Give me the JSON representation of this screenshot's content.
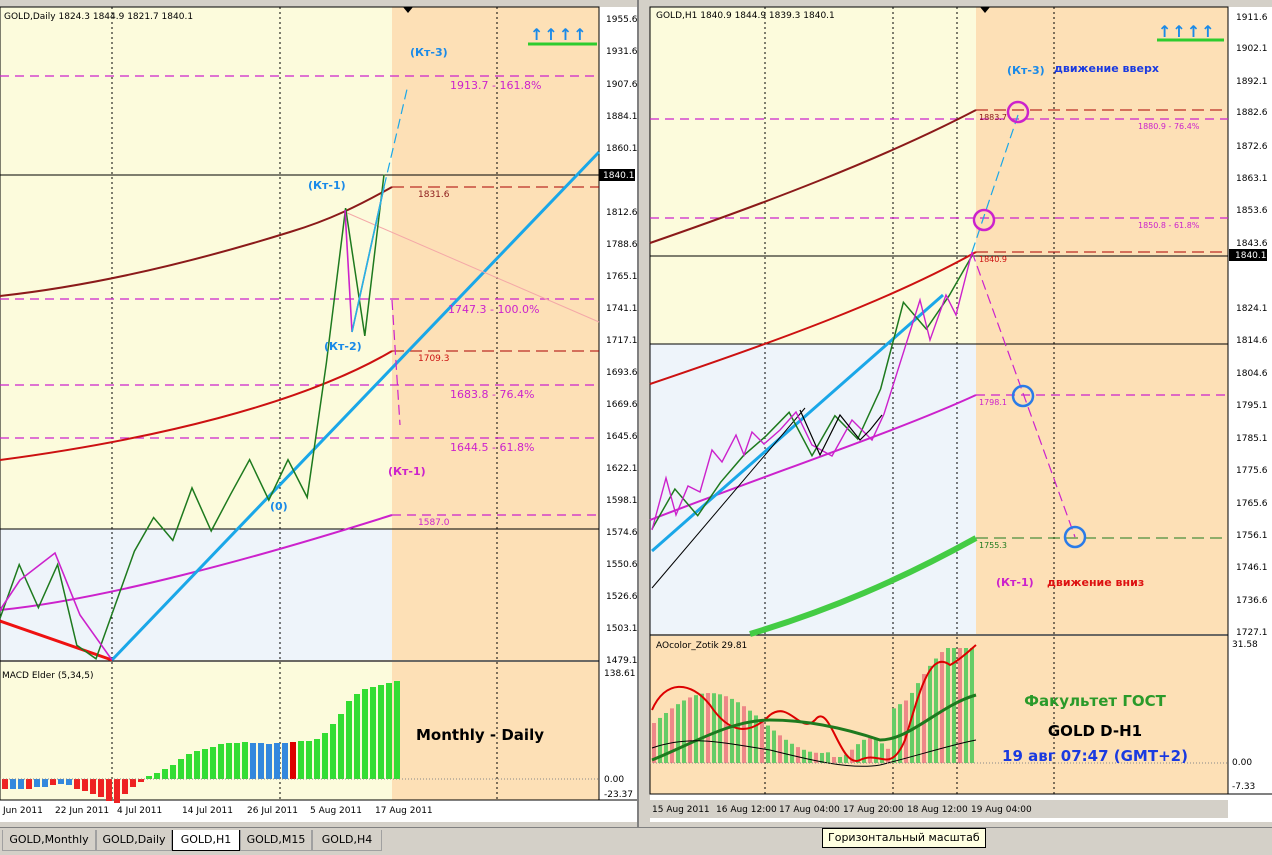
{
  "left": {
    "header": "GOLD,Daily  1824.3 1844.9 1821.7 1840.1",
    "price_ticks": [
      "1955.6",
      "1931.6",
      "1907.6",
      "1884.1",
      "1860.1",
      "1812.6",
      "1788.6",
      "1765.1",
      "1741.1",
      "1717.1",
      "1693.6",
      "1669.6",
      "1645.6",
      "1622.1",
      "1598.1",
      "1574.6",
      "1550.6",
      "1526.6",
      "1503.1",
      "1479.1"
    ],
    "current_price": "1840.1",
    "date_ticks": [
      "Jun 2011",
      "22 Jun 2011",
      "4 Jul 2011",
      "14 Jul 2011",
      "26 Jul 2011",
      "5 Aug 2011",
      "17 Aug 2011"
    ],
    "labels": {
      "kt3": "(Кт-3)",
      "kt1": "(Кт-1)",
      "kt2": "(Кт-2)",
      "zero": "(0)",
      "kt1_down": "(Кт-1)",
      "fib1": "1913.7 - 161.8%",
      "fib2": "1747.3 - 100.0%",
      "fib3": "1683.8 - 76.4%",
      "fib4": "1644.5 - 61.8%",
      "lvl1": "1831.6",
      "lvl2": "1709.3",
      "lvl3": "1587.0"
    },
    "osc_header": "MACD Elder (5,34,5)",
    "osc_ticks": [
      "138.61",
      "0.00",
      "-23.37"
    ],
    "caption": "Monthly - Daily",
    "arrows": "↑↑↑↑",
    "chart_data": {
      "type": "line",
      "title": "GOLD,Daily",
      "ylim": [
        1479.1,
        1955.6
      ],
      "price_path": [
        {
          "x": "Jun 2011",
          "y": 1510
        },
        {
          "x": "",
          "y": 1550
        },
        {
          "x": "",
          "y": 1518
        },
        {
          "x": "",
          "y": 1550
        },
        {
          "x": "",
          "y": 1490
        },
        {
          "x": "4 Jul 2011",
          "y": 1480
        },
        {
          "x": "",
          "y": 1520
        },
        {
          "x": "",
          "y": 1560
        },
        {
          "x": "14 Jul 2011",
          "y": 1585
        },
        {
          "x": "",
          "y": 1568
        },
        {
          "x": "",
          "y": 1607
        },
        {
          "x": "",
          "y": 1575
        },
        {
          "x": "",
          "y": 1602
        },
        {
          "x": "",
          "y": 1628
        },
        {
          "x": "26 Jul 2011",
          "y": 1598
        },
        {
          "x": "",
          "y": 1628
        },
        {
          "x": "",
          "y": 1600
        },
        {
          "x": "",
          "y": 1700
        },
        {
          "x": "",
          "y": 1815
        },
        {
          "x": "",
          "y": 1720
        },
        {
          "x": "17 Aug 2011",
          "y": 1840
        }
      ]
    }
  },
  "right": {
    "header": "GOLD,H1  1840.9 1844.9 1839.3 1840.1",
    "price_ticks": [
      "1911.6",
      "1902.1",
      "1892.1",
      "1882.6",
      "1872.6",
      "1863.1",
      "1853.6",
      "1843.6",
      "1824.1",
      "1814.6",
      "1804.6",
      "1795.1",
      "1785.1",
      "1775.6",
      "1765.6",
      "1756.1",
      "1746.1",
      "1736.6",
      "1727.1"
    ],
    "current_price": "1840.1",
    "date_ticks": [
      "15 Aug 2011",
      "16 Aug 12:00",
      "17 Aug 04:00",
      "17 Aug 20:00",
      "18 Aug 12:00",
      "19 Aug 04:00"
    ],
    "labels": {
      "kt3": "(Кт-3)",
      "up_text": "движение вверх",
      "kt1": "(Кт-1)",
      "down_text": "движение вниз",
      "lvl1": "1883.7",
      "lvl2": "1840.9",
      "lvl3": "1798.1",
      "lvl4": "1755.3",
      "fib1": "1880.9 - 76.4%",
      "fib2": "1850.8 - 61.8%"
    },
    "osc_header": "AOcolor_Zotik 29.81",
    "osc_ticks": [
      "31.58",
      "0.00",
      "-7.33"
    ],
    "caption_line1": "Факультет ГОСТ",
    "caption_line2": "GOLD  D-H1",
    "caption_line3": "19 авг 07:47 (GMT+2)",
    "arrows": "↑↑↑↑",
    "chart_data": {
      "type": "line",
      "title": "GOLD,H1",
      "ylim": [
        1727.1,
        1911.6
      ],
      "price_path": [
        {
          "x": "15 Aug 2011",
          "y": 1758
        },
        {
          "x": "",
          "y": 1770
        },
        {
          "x": "",
          "y": 1762
        },
        {
          "x": "",
          "y": 1772
        },
        {
          "x": "16 Aug 12:00",
          "y": 1780
        },
        {
          "x": "",
          "y": 1786
        },
        {
          "x": "",
          "y": 1793
        },
        {
          "x": "17 Aug 04:00",
          "y": 1780
        },
        {
          "x": "",
          "y": 1792
        },
        {
          "x": "17 Aug 20:00",
          "y": 1785
        },
        {
          "x": "",
          "y": 1800
        },
        {
          "x": "18 Aug 12:00",
          "y": 1826
        },
        {
          "x": "",
          "y": 1818
        },
        {
          "x": "",
          "y": 1828
        },
        {
          "x": "19 Aug 04:00",
          "y": 1840
        }
      ]
    }
  },
  "tabs": [
    "GOLD,Monthly",
    "GOLD,Daily",
    "GOLD,H1",
    "GOLD,M15",
    "GOLD,H4"
  ],
  "active_tab": "GOLD,H1",
  "tooltip": "Горизонтальный масштаб"
}
